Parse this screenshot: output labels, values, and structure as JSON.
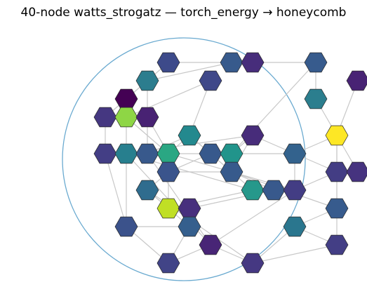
{
  "title": "40-node watts_strogatz — torch_energy → honeycomb",
  "colors": {
    "background": "#ffffff",
    "boundary": "#6aaad0",
    "edge": "#c8c8c8",
    "node_stroke": "#2a2a2a"
  },
  "nodes": [
    {
      "id": "n0",
      "col": 6,
      "row": 2,
      "color": "#3d4a8a"
    },
    {
      "id": "n1",
      "col": 9,
      "row": 2,
      "color": "#375a8c"
    },
    {
      "id": "n2",
      "col": 10,
      "row": 2,
      "color": "#472d7b"
    },
    {
      "id": "n3",
      "col": 13,
      "row": 2,
      "color": "#375b8d"
    },
    {
      "id": "n4",
      "col": 5,
      "row": 3,
      "color": "#2c7d8e"
    },
    {
      "id": "n5",
      "col": 8,
      "row": 3,
      "color": "#3f4889"
    },
    {
      "id": "n6",
      "col": 15,
      "row": 3,
      "color": "#482374"
    },
    {
      "id": "n7",
      "col": 4,
      "row": 4,
      "color": "#440154"
    },
    {
      "id": "n8",
      "col": 13,
      "row": 4,
      "color": "#2b7e8e"
    },
    {
      "id": "n9",
      "col": 3,
      "row": 5,
      "color": "#453781"
    },
    {
      "id": "n10",
      "col": 4,
      "row": 5,
      "color": "#8ed645"
    },
    {
      "id": "n11",
      "col": 5,
      "row": 5,
      "color": "#482273"
    },
    {
      "id": "n12",
      "col": 7,
      "row": 6,
      "color": "#23898e"
    },
    {
      "id": "n13",
      "col": 10,
      "row": 6,
      "color": "#472c7a"
    },
    {
      "id": "n14",
      "col": 14,
      "row": 6,
      "color": "#fde725"
    },
    {
      "id": "n15",
      "col": 3,
      "row": 7,
      "color": "#433e85"
    },
    {
      "id": "n16",
      "col": 4,
      "row": 7,
      "color": "#277f8e"
    },
    {
      "id": "n17",
      "col": 5,
      "row": 7,
      "color": "#38598c"
    },
    {
      "id": "n18",
      "col": 6,
      "row": 7,
      "color": "#2aa783"
    },
    {
      "id": "n19",
      "col": 8,
      "row": 7,
      "color": "#37598c"
    },
    {
      "id": "n20",
      "col": 9,
      "row": 7,
      "color": "#21948b"
    },
    {
      "id": "n21",
      "col": 12,
      "row": 7,
      "color": "#33628d"
    },
    {
      "id": "n22",
      "col": 6,
      "row": 8,
      "color": "#3a548c"
    },
    {
      "id": "n23",
      "col": 9,
      "row": 8,
      "color": "#375a8c"
    },
    {
      "id": "n24",
      "col": 14,
      "row": 8,
      "color": "#433d84"
    },
    {
      "id": "n25",
      "col": 15,
      "row": 8,
      "color": "#46337f"
    },
    {
      "id": "n26",
      "col": 5,
      "row": 9,
      "color": "#2f6c8e"
    },
    {
      "id": "n27",
      "col": 10,
      "row": 9,
      "color": "#26988b"
    },
    {
      "id": "n28",
      "col": 11,
      "row": 9,
      "color": "#38598c"
    },
    {
      "id": "n29",
      "col": 12,
      "row": 9,
      "color": "#433d84"
    },
    {
      "id": "n30",
      "col": 6,
      "row": 10,
      "color": "#c0df25"
    },
    {
      "id": "n31",
      "col": 7,
      "row": 10,
      "color": "#472f7d"
    },
    {
      "id": "n32",
      "col": 14,
      "row": 10,
      "color": "#375b8d"
    },
    {
      "id": "n33",
      "col": 4,
      "row": 11,
      "color": "#3b528b"
    },
    {
      "id": "n34",
      "col": 7,
      "row": 11,
      "color": "#355f8d"
    },
    {
      "id": "n35",
      "col": 12,
      "row": 11,
      "color": "#2a768e"
    },
    {
      "id": "n36",
      "col": 8,
      "row": 12,
      "color": "#482576"
    },
    {
      "id": "n37",
      "col": 14,
      "row": 12,
      "color": "#433e85"
    },
    {
      "id": "n38",
      "col": 6,
      "row": 13,
      "color": "#414487"
    },
    {
      "id": "n39",
      "col": 10,
      "row": 13,
      "color": "#453882"
    }
  ],
  "edges": [
    [
      "n0",
      "n1"
    ],
    [
      "n1",
      "n2"
    ],
    [
      "n2",
      "n3"
    ],
    [
      "n3",
      "n8"
    ],
    [
      "n8",
      "n14"
    ],
    [
      "n6",
      "n14"
    ],
    [
      "n0",
      "n4"
    ],
    [
      "n1",
      "n4"
    ],
    [
      "n4",
      "n7"
    ],
    [
      "n4",
      "n9"
    ],
    [
      "n4",
      "n11"
    ],
    [
      "n5",
      "n10"
    ],
    [
      "n7",
      "n9"
    ],
    [
      "n7",
      "n10"
    ],
    [
      "n9",
      "n10"
    ],
    [
      "n9",
      "n15"
    ],
    [
      "n10",
      "n11"
    ],
    [
      "n10",
      "n16"
    ],
    [
      "n10",
      "n18"
    ],
    [
      "n11",
      "n17"
    ],
    [
      "n11",
      "n18"
    ],
    [
      "n12",
      "n18"
    ],
    [
      "n12",
      "n19"
    ],
    [
      "n12",
      "n17"
    ],
    [
      "n15",
      "n16"
    ],
    [
      "n16",
      "n17"
    ],
    [
      "n17",
      "n18"
    ],
    [
      "n18",
      "n19"
    ],
    [
      "n19",
      "n20"
    ],
    [
      "n19",
      "n22"
    ],
    [
      "n20",
      "n21"
    ],
    [
      "n13",
      "n20"
    ],
    [
      "n13",
      "n23"
    ],
    [
      "n14",
      "n21"
    ],
    [
      "n14",
      "n24"
    ],
    [
      "n14",
      "n25"
    ],
    [
      "n14",
      "n32"
    ],
    [
      "n21",
      "n24"
    ],
    [
      "n21",
      "n29"
    ],
    [
      "n22",
      "n26"
    ],
    [
      "n22",
      "n23"
    ],
    [
      "n23",
      "n28"
    ],
    [
      "n24",
      "n25"
    ],
    [
      "n24",
      "n29"
    ],
    [
      "n24",
      "n32"
    ],
    [
      "n26",
      "n30"
    ],
    [
      "n27",
      "n28"
    ],
    [
      "n28",
      "n29"
    ],
    [
      "n28",
      "n31"
    ],
    [
      "n27",
      "n30"
    ],
    [
      "n30",
      "n31"
    ],
    [
      "n30",
      "n34"
    ],
    [
      "n31",
      "n34"
    ],
    [
      "n32",
      "n35"
    ],
    [
      "n32",
      "n37"
    ],
    [
      "n35",
      "n37"
    ],
    [
      "n35",
      "n39"
    ],
    [
      "n37",
      "n39"
    ],
    [
      "n36",
      "n39"
    ],
    [
      "n36",
      "n38"
    ],
    [
      "n34",
      "n38"
    ],
    [
      "n33",
      "n34"
    ],
    [
      "n16",
      "n33"
    ],
    [
      "n15",
      "n33"
    ],
    [
      "n33",
      "n38"
    ],
    [
      "n22",
      "n30"
    ],
    [
      "n5",
      "n12"
    ],
    [
      "n3",
      "n20"
    ],
    [
      "n13",
      "n21"
    ],
    [
      "n12",
      "n27"
    ],
    [
      "n16",
      "n36"
    ],
    [
      "n17",
      "n36"
    ],
    [
      "n18",
      "n29"
    ],
    [
      "n23",
      "n32"
    ],
    [
      "n16",
      "n27"
    ],
    [
      "n26",
      "n39"
    ],
    [
      "n29",
      "n36"
    ],
    [
      "n13",
      "n16"
    ]
  ]
}
